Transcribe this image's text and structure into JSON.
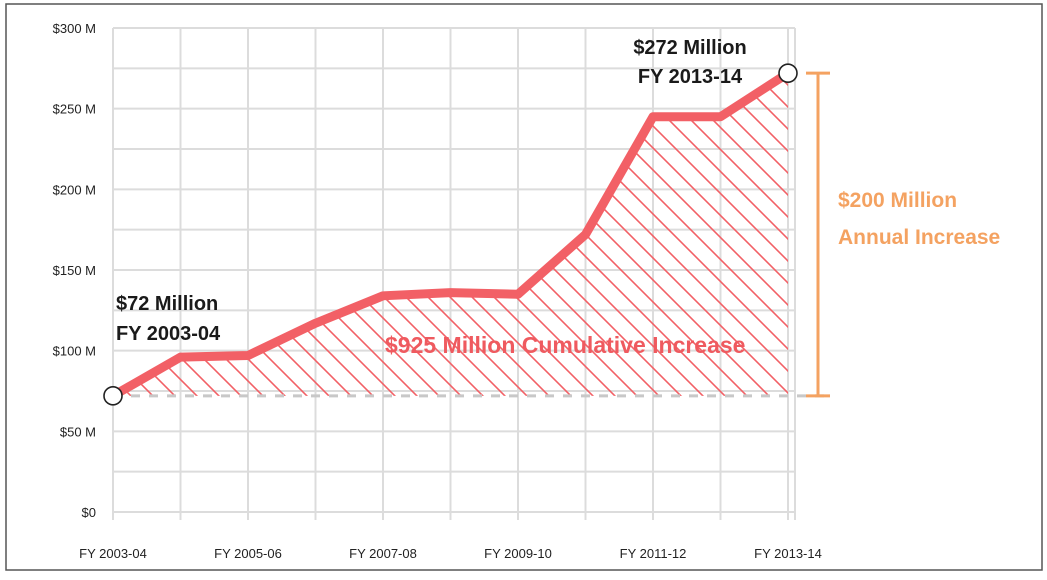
{
  "chart_data": {
    "type": "line",
    "title": "",
    "xlabel": "",
    "ylabel": "",
    "y_ticks": [
      "$0",
      "$50 M",
      "$100 M",
      "$150 M",
      "$200 M",
      "$250 M",
      "$300 M"
    ],
    "y_tick_values": [
      0,
      50,
      100,
      150,
      200,
      250,
      300
    ],
    "ylim": [
      0,
      300
    ],
    "x_tick_labels": [
      "FY 2003-04",
      "FY 2005-06",
      "FY 2007-08",
      "FY 2009-10",
      "FY 2011-12",
      "FY 2013-14"
    ],
    "categories": [
      "FY 2003-04",
      "FY 2004-05",
      "FY 2005-06",
      "FY 2006-07",
      "FY 2007-08",
      "FY 2008-09",
      "FY 2009-10",
      "FY 2010-11",
      "FY 2011-12",
      "FY 2012-13",
      "FY 2013-14"
    ],
    "values": [
      72,
      96,
      97,
      117,
      134,
      136,
      135,
      172,
      245,
      245,
      272
    ],
    "baseline_value": 72,
    "grid": true,
    "annotations": {
      "start_line1": "$72 Million",
      "start_line2": "FY 2003-04",
      "end_line1": "$272 Million",
      "end_line2": "FY 2013-14",
      "cumulative": "$925 Million Cumulative Increase",
      "annual_line1": "$200 Million",
      "annual_line2": "Annual Increase"
    },
    "colors": {
      "line": "#f26066",
      "hatch": "#f26066",
      "bracket": "#f4a261",
      "baseline": "#c8c8c8",
      "grid": "#dcdcdc"
    }
  }
}
